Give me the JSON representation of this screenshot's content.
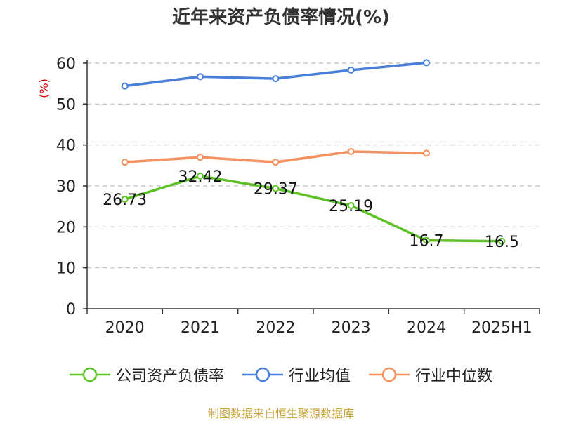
{
  "chart_data": {
    "type": "line",
    "title": "近年来资产负债率情况(%)",
    "ylabel": "(%)",
    "xlabel": "",
    "categories": [
      "2020",
      "2021",
      "2022",
      "2023",
      "2024",
      "2025H1"
    ],
    "ylim": [
      0,
      60
    ],
    "yticks": [
      0,
      10,
      20,
      30,
      40,
      50,
      60
    ],
    "grid": true,
    "legend_position": "bottom",
    "series": [
      {
        "name": "公司资产负债率",
        "color": "#5cc225",
        "values": [
          26.73,
          32.42,
          29.37,
          25.19,
          16.7,
          16.5
        ],
        "data_labels": [
          "26.73",
          "32.42",
          "29.37",
          "25.19",
          "16.7",
          "16.5"
        ]
      },
      {
        "name": "行业均值",
        "color": "#4a7fd9",
        "values": [
          54.4,
          56.7,
          56.2,
          58.3,
          60.1,
          null
        ]
      },
      {
        "name": "行业中位数",
        "color": "#f4915e",
        "values": [
          35.8,
          37.0,
          35.8,
          38.4,
          38.0,
          null
        ]
      }
    ]
  },
  "source": "制图数据来自恒生聚源数据库"
}
